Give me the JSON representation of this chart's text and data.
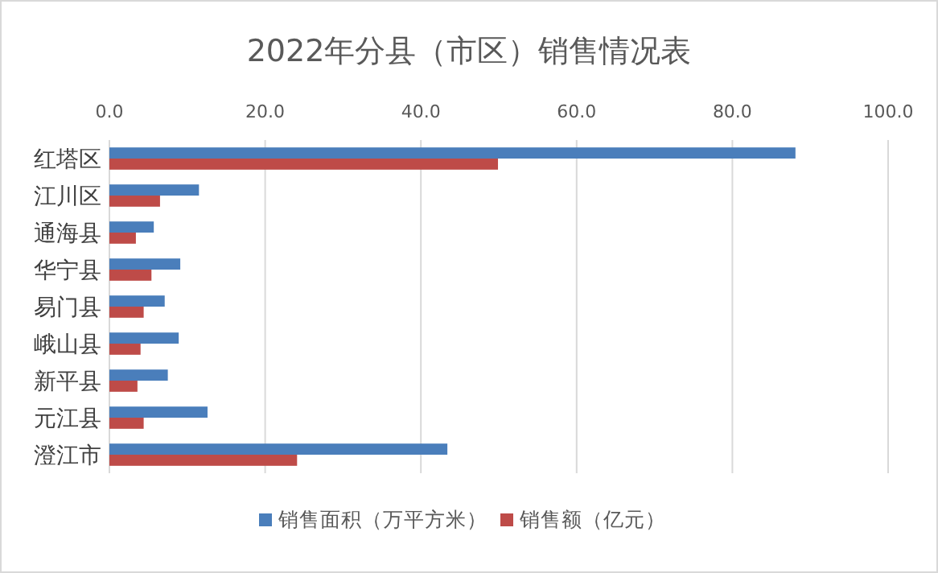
{
  "chart_data": {
    "type": "bar",
    "orientation": "horizontal",
    "title": "2022年分县（市区）销售情况表",
    "categories": [
      "红塔区",
      "江川区",
      "通海县",
      "华宁县",
      "易门县",
      "峨山县",
      "新平县",
      "元江县",
      "澄江市"
    ],
    "series": [
      {
        "name": "销售面积（万平方米）",
        "color": "#4a7ebb",
        "values": [
          88.1,
          11.5,
          5.7,
          9.1,
          7.1,
          8.9,
          7.5,
          12.6,
          43.4
        ]
      },
      {
        "name": "销售额（亿元）",
        "color": "#be4b48",
        "values": [
          49.9,
          6.5,
          3.4,
          5.4,
          4.4,
          4.0,
          3.6,
          4.4,
          24.1
        ]
      }
    ],
    "xlim": [
      0,
      100
    ],
    "xticks": [
      {
        "value": 0,
        "label": "0.0"
      },
      {
        "value": 20,
        "label": "20.0"
      },
      {
        "value": 40,
        "label": "40.0"
      },
      {
        "value": 60,
        "label": "60.0"
      },
      {
        "value": 80,
        "label": "80.0"
      },
      {
        "value": 100,
        "label": "100.0"
      }
    ],
    "grid": "x",
    "legend": "bottom"
  }
}
